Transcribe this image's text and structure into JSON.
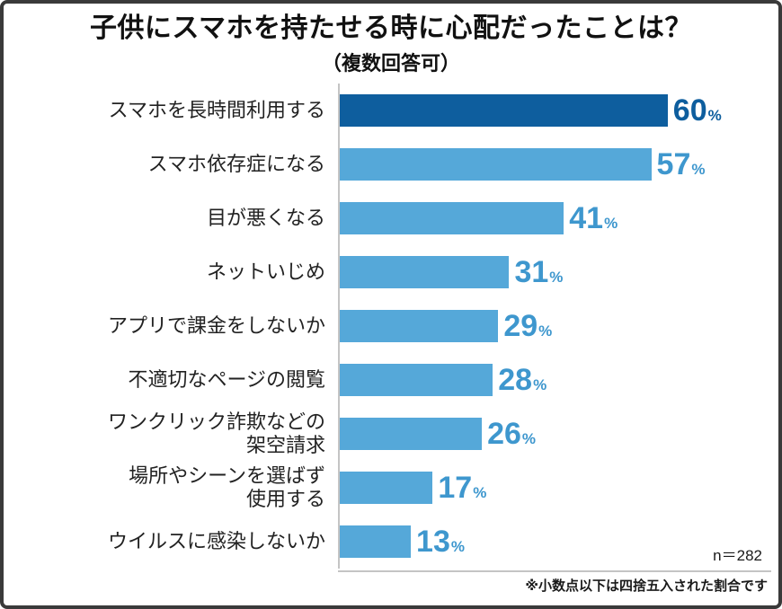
{
  "title": "子供にスマホを持たせる時に心配だったことは？",
  "subtitle": "（複数回答可）",
  "colors": {
    "bar_highlight": "#0e5e9e",
    "bar_default": "#55a8d9",
    "value_highlight": "#0e5e9e",
    "value_default": "#3e97ce",
    "axis": "#c4c4c4",
    "title_text": "#111111",
    "label_text": "#222222"
  },
  "footer": {
    "sample_size": "n＝282",
    "note": "※小数点以下は四捨五入された割合です"
  },
  "chart_data": {
    "type": "bar",
    "orientation": "horizontal",
    "title": "子供にスマホを持たせる時に心配だったことは？",
    "subtitle": "（複数回答可）",
    "unit": "%",
    "xlim": [
      0,
      62
    ],
    "highlight_index": 0,
    "legend": "none",
    "grid": "off",
    "categories": [
      "スマホを長時間利用する",
      "スマホ依存症になる",
      "目が悪くなる",
      "ネットいじめ",
      "アプリで課金をしないか",
      "不適切なページの閲覧",
      "ワンクリック詐欺などの\n架空請求",
      "場所やシーンを選ばず\n使用する",
      "ウイルスに感染しないか"
    ],
    "values": [
      60,
      57,
      41,
      31,
      29,
      28,
      26,
      17,
      13
    ],
    "sample_size": "n＝282",
    "note": "※小数点以下は四捨五入された割合です"
  }
}
